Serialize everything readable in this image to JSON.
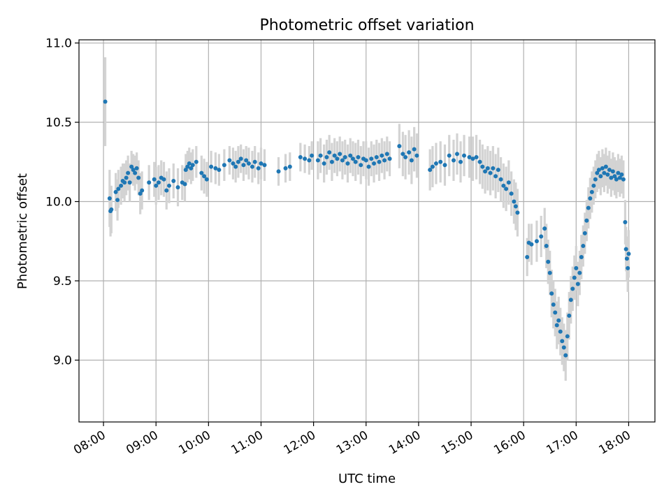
{
  "chart_data": {
    "type": "scatter",
    "title": "Photometric offset variation",
    "xlabel": "UTC time",
    "ylabel": "Photometric offset",
    "xlim": [
      "07:32",
      "18:30"
    ],
    "ylim": [
      8.61,
      11.02
    ],
    "x_ticks": [
      "08:00",
      "09:00",
      "10:00",
      "11:00",
      "12:00",
      "13:00",
      "14:00",
      "15:00",
      "16:00",
      "17:00",
      "18:00"
    ],
    "y_ticks": [
      9.0,
      9.5,
      10.0,
      10.5,
      11.0
    ],
    "grid": true,
    "colors": {
      "point": "#1f77b4",
      "errorbar": "#d3d3d3"
    },
    "series": [
      {
        "points": [
          {
            "t": "08:02",
            "y": 10.63,
            "e": 0.28
          },
          {
            "t": "08:07",
            "y": 10.02,
            "e": 0.18
          },
          {
            "t": "08:08",
            "y": 9.94,
            "e": 0.16
          },
          {
            "t": "08:09",
            "y": 9.95,
            "e": 0.15
          },
          {
            "t": "08:14",
            "y": 10.06,
            "e": 0.12
          },
          {
            "t": "08:16",
            "y": 10.01,
            "e": 0.13
          },
          {
            "t": "08:17",
            "y": 10.08,
            "e": 0.12
          },
          {
            "t": "08:20",
            "y": 10.1,
            "e": 0.12
          },
          {
            "t": "08:22",
            "y": 10.13,
            "e": 0.11
          },
          {
            "t": "08:24",
            "y": 10.12,
            "e": 0.12
          },
          {
            "t": "08:26",
            "y": 10.15,
            "e": 0.11
          },
          {
            "t": "08:28",
            "y": 10.18,
            "e": 0.11
          },
          {
            "t": "08:30",
            "y": 10.12,
            "e": 0.12
          },
          {
            "t": "08:32",
            "y": 10.22,
            "e": 0.1
          },
          {
            "t": "08:34",
            "y": 10.2,
            "e": 0.1
          },
          {
            "t": "08:36",
            "y": 10.18,
            "e": 0.11
          },
          {
            "t": "08:38",
            "y": 10.21,
            "e": 0.1
          },
          {
            "t": "08:40",
            "y": 10.15,
            "e": 0.11
          },
          {
            "t": "08:42",
            "y": 10.05,
            "e": 0.13
          },
          {
            "t": "08:44",
            "y": 10.07,
            "e": 0.12
          },
          {
            "t": "08:52",
            "y": 10.12,
            "e": 0.11
          },
          {
            "t": "08:58",
            "y": 10.14,
            "e": 0.11
          },
          {
            "t": "09:00",
            "y": 10.1,
            "e": 0.12
          },
          {
            "t": "09:03",
            "y": 10.12,
            "e": 0.11
          },
          {
            "t": "09:06",
            "y": 10.15,
            "e": 0.11
          },
          {
            "t": "09:09",
            "y": 10.14,
            "e": 0.11
          },
          {
            "t": "09:12",
            "y": 10.07,
            "e": 0.12
          },
          {
            "t": "09:15",
            "y": 10.1,
            "e": 0.11
          },
          {
            "t": "09:20",
            "y": 10.13,
            "e": 0.11
          },
          {
            "t": "09:25",
            "y": 10.09,
            "e": 0.12
          },
          {
            "t": "09:30",
            "y": 10.12,
            "e": 0.11
          },
          {
            "t": "09:33",
            "y": 10.11,
            "e": 0.11
          },
          {
            "t": "09:34",
            "y": 10.2,
            "e": 0.1
          },
          {
            "t": "09:36",
            "y": 10.22,
            "e": 0.1
          },
          {
            "t": "09:38",
            "y": 10.24,
            "e": 0.1
          },
          {
            "t": "09:40",
            "y": 10.21,
            "e": 0.1
          },
          {
            "t": "09:42",
            "y": 10.23,
            "e": 0.1
          },
          {
            "t": "09:46",
            "y": 10.25,
            "e": 0.1
          },
          {
            "t": "09:52",
            "y": 10.18,
            "e": 0.11
          },
          {
            "t": "09:55",
            "y": 10.16,
            "e": 0.11
          },
          {
            "t": "09:58",
            "y": 10.14,
            "e": 0.11
          },
          {
            "t": "10:03",
            "y": 10.22,
            "e": 0.1
          },
          {
            "t": "10:08",
            "y": 10.21,
            "e": 0.1
          },
          {
            "t": "10:12",
            "y": 10.2,
            "e": 0.1
          },
          {
            "t": "10:18",
            "y": 10.23,
            "e": 0.1
          },
          {
            "t": "10:24",
            "y": 10.26,
            "e": 0.09
          },
          {
            "t": "10:28",
            "y": 10.24,
            "e": 0.1
          },
          {
            "t": "10:31",
            "y": 10.22,
            "e": 0.1
          },
          {
            "t": "10:34",
            "y": 10.25,
            "e": 0.1
          },
          {
            "t": "10:37",
            "y": 10.27,
            "e": 0.09
          },
          {
            "t": "10:40",
            "y": 10.23,
            "e": 0.1
          },
          {
            "t": "10:43",
            "y": 10.26,
            "e": 0.09
          },
          {
            "t": "10:46",
            "y": 10.24,
            "e": 0.1
          },
          {
            "t": "10:50",
            "y": 10.22,
            "e": 0.1
          },
          {
            "t": "10:53",
            "y": 10.25,
            "e": 0.1
          },
          {
            "t": "10:57",
            "y": 10.21,
            "e": 0.1
          },
          {
            "t": "11:00",
            "y": 10.24,
            "e": 0.1
          },
          {
            "t": "11:04",
            "y": 10.23,
            "e": 0.1
          },
          {
            "t": "11:20",
            "y": 10.19,
            "e": 0.09
          },
          {
            "t": "11:28",
            "y": 10.21,
            "e": 0.09
          },
          {
            "t": "11:33",
            "y": 10.22,
            "e": 0.09
          },
          {
            "t": "11:45",
            "y": 10.28,
            "e": 0.09
          },
          {
            "t": "11:50",
            "y": 10.27,
            "e": 0.09
          },
          {
            "t": "11:55",
            "y": 10.26,
            "e": 0.09
          },
          {
            "t": "11:58",
            "y": 10.29,
            "e": 0.09
          },
          {
            "t": "12:05",
            "y": 10.26,
            "e": 0.12
          },
          {
            "t": "12:08",
            "y": 10.29,
            "e": 0.11
          },
          {
            "t": "12:12",
            "y": 10.24,
            "e": 0.12
          },
          {
            "t": "12:15",
            "y": 10.28,
            "e": 0.11
          },
          {
            "t": "12:18",
            "y": 10.31,
            "e": 0.11
          },
          {
            "t": "12:21",
            "y": 10.25,
            "e": 0.12
          },
          {
            "t": "12:24",
            "y": 10.29,
            "e": 0.11
          },
          {
            "t": "12:27",
            "y": 10.27,
            "e": 0.11
          },
          {
            "t": "12:30",
            "y": 10.3,
            "e": 0.11
          },
          {
            "t": "12:33",
            "y": 10.26,
            "e": 0.12
          },
          {
            "t": "12:36",
            "y": 10.28,
            "e": 0.11
          },
          {
            "t": "12:39",
            "y": 10.24,
            "e": 0.12
          },
          {
            "t": "12:42",
            "y": 10.29,
            "e": 0.11
          },
          {
            "t": "12:45",
            "y": 10.27,
            "e": 0.11
          },
          {
            "t": "12:48",
            "y": 10.25,
            "e": 0.12
          },
          {
            "t": "12:51",
            "y": 10.28,
            "e": 0.11
          },
          {
            "t": "12:54",
            "y": 10.23,
            "e": 0.12
          },
          {
            "t": "12:57",
            "y": 10.27,
            "e": 0.11
          },
          {
            "t": "13:00",
            "y": 10.26,
            "e": 0.12
          },
          {
            "t": "13:03",
            "y": 10.22,
            "e": 0.12
          },
          {
            "t": "13:06",
            "y": 10.27,
            "e": 0.11
          },
          {
            "t": "13:09",
            "y": 10.24,
            "e": 0.12
          },
          {
            "t": "13:12",
            "y": 10.28,
            "e": 0.11
          },
          {
            "t": "13:15",
            "y": 10.25,
            "e": 0.12
          },
          {
            "t": "13:18",
            "y": 10.29,
            "e": 0.11
          },
          {
            "t": "13:21",
            "y": 10.26,
            "e": 0.12
          },
          {
            "t": "13:24",
            "y": 10.3,
            "e": 0.11
          },
          {
            "t": "13:27",
            "y": 10.27,
            "e": 0.11
          },
          {
            "t": "13:38",
            "y": 10.35,
            "e": 0.14
          },
          {
            "t": "13:42",
            "y": 10.3,
            "e": 0.14
          },
          {
            "t": "13:45",
            "y": 10.28,
            "e": 0.14
          },
          {
            "t": "13:49",
            "y": 10.31,
            "e": 0.14
          },
          {
            "t": "13:52",
            "y": 10.26,
            "e": 0.15
          },
          {
            "t": "13:55",
            "y": 10.33,
            "e": 0.14
          },
          {
            "t": "13:58",
            "y": 10.29,
            "e": 0.14
          },
          {
            "t": "14:13",
            "y": 10.2,
            "e": 0.13
          },
          {
            "t": "14:16",
            "y": 10.22,
            "e": 0.13
          },
          {
            "t": "14:20",
            "y": 10.24,
            "e": 0.13
          },
          {
            "t": "14:25",
            "y": 10.25,
            "e": 0.13
          },
          {
            "t": "14:30",
            "y": 10.23,
            "e": 0.13
          },
          {
            "t": "14:35",
            "y": 10.29,
            "e": 0.13
          },
          {
            "t": "14:40",
            "y": 10.26,
            "e": 0.13
          },
          {
            "t": "14:44",
            "y": 10.3,
            "e": 0.13
          },
          {
            "t": "14:48",
            "y": 10.25,
            "e": 0.13
          },
          {
            "t": "14:52",
            "y": 10.29,
            "e": 0.13
          },
          {
            "t": "14:58",
            "y": 10.28,
            "e": 0.13
          },
          {
            "t": "15:02",
            "y": 10.27,
            "e": 0.14
          },
          {
            "t": "15:06",
            "y": 10.28,
            "e": 0.14
          },
          {
            "t": "15:10",
            "y": 10.25,
            "e": 0.14
          },
          {
            "t": "15:13",
            "y": 10.22,
            "e": 0.14
          },
          {
            "t": "15:16",
            "y": 10.19,
            "e": 0.14
          },
          {
            "t": "15:19",
            "y": 10.21,
            "e": 0.14
          },
          {
            "t": "15:22",
            "y": 10.18,
            "e": 0.14
          },
          {
            "t": "15:25",
            "y": 10.21,
            "e": 0.14
          },
          {
            "t": "15:28",
            "y": 10.16,
            "e": 0.14
          },
          {
            "t": "15:31",
            "y": 10.2,
            "e": 0.14
          },
          {
            "t": "15:34",
            "y": 10.14,
            "e": 0.14
          },
          {
            "t": "15:37",
            "y": 10.1,
            "e": 0.14
          },
          {
            "t": "15:40",
            "y": 10.08,
            "e": 0.14
          },
          {
            "t": "15:43",
            "y": 10.12,
            "e": 0.14
          },
          {
            "t": "15:46",
            "y": 10.05,
            "e": 0.14
          },
          {
            "t": "15:49",
            "y": 10.0,
            "e": 0.14
          },
          {
            "t": "15:51",
            "y": 9.97,
            "e": 0.15
          },
          {
            "t": "15:53",
            "y": 9.93,
            "e": 0.15
          },
          {
            "t": "16:04",
            "y": 9.65,
            "e": 0.12
          },
          {
            "t": "16:06",
            "y": 9.74,
            "e": 0.12
          },
          {
            "t": "16:09",
            "y": 9.73,
            "e": 0.13
          },
          {
            "t": "16:15",
            "y": 9.75,
            "e": 0.13
          },
          {
            "t": "16:20",
            "y": 9.78,
            "e": 0.13
          },
          {
            "t": "16:24",
            "y": 9.83,
            "e": 0.13
          },
          {
            "t": "16:26",
            "y": 9.72,
            "e": 0.14
          },
          {
            "t": "16:28",
            "y": 9.62,
            "e": 0.14
          },
          {
            "t": "16:30",
            "y": 9.55,
            "e": 0.14
          },
          {
            "t": "16:32",
            "y": 9.42,
            "e": 0.15
          },
          {
            "t": "16:34",
            "y": 9.35,
            "e": 0.15
          },
          {
            "t": "16:36",
            "y": 9.3,
            "e": 0.15
          },
          {
            "t": "16:38",
            "y": 9.22,
            "e": 0.15
          },
          {
            "t": "16:40",
            "y": 9.25,
            "e": 0.15
          },
          {
            "t": "16:42",
            "y": 9.18,
            "e": 0.15
          },
          {
            "t": "16:44",
            "y": 9.12,
            "e": 0.15
          },
          {
            "t": "16:46",
            "y": 9.08,
            "e": 0.15
          },
          {
            "t": "16:48",
            "y": 9.03,
            "e": 0.16
          },
          {
            "t": "16:50",
            "y": 9.15,
            "e": 0.15
          },
          {
            "t": "16:52",
            "y": 9.28,
            "e": 0.15
          },
          {
            "t": "16:54",
            "y": 9.38,
            "e": 0.15
          },
          {
            "t": "16:56",
            "y": 9.45,
            "e": 0.14
          },
          {
            "t": "16:58",
            "y": 9.52,
            "e": 0.14
          },
          {
            "t": "17:00",
            "y": 9.58,
            "e": 0.14
          },
          {
            "t": "17:02",
            "y": 9.48,
            "e": 0.14
          },
          {
            "t": "17:04",
            "y": 9.55,
            "e": 0.14
          },
          {
            "t": "17:06",
            "y": 9.65,
            "e": 0.14
          },
          {
            "t": "17:08",
            "y": 9.72,
            "e": 0.13
          },
          {
            "t": "17:10",
            "y": 9.8,
            "e": 0.13
          },
          {
            "t": "17:12",
            "y": 9.88,
            "e": 0.13
          },
          {
            "t": "17:14",
            "y": 9.96,
            "e": 0.13
          },
          {
            "t": "17:16",
            "y": 10.02,
            "e": 0.13
          },
          {
            "t": "17:18",
            "y": 10.06,
            "e": 0.13
          },
          {
            "t": "17:20",
            "y": 10.1,
            "e": 0.12
          },
          {
            "t": "17:22",
            "y": 10.14,
            "e": 0.12
          },
          {
            "t": "17:24",
            "y": 10.18,
            "e": 0.12
          },
          {
            "t": "17:26",
            "y": 10.2,
            "e": 0.12
          },
          {
            "t": "17:28",
            "y": 10.16,
            "e": 0.12
          },
          {
            "t": "17:30",
            "y": 10.21,
            "e": 0.12
          },
          {
            "t": "17:32",
            "y": 10.18,
            "e": 0.12
          },
          {
            "t": "17:34",
            "y": 10.22,
            "e": 0.12
          },
          {
            "t": "17:36",
            "y": 10.17,
            "e": 0.12
          },
          {
            "t": "17:38",
            "y": 10.2,
            "e": 0.12
          },
          {
            "t": "17:40",
            "y": 10.15,
            "e": 0.12
          },
          {
            "t": "17:42",
            "y": 10.19,
            "e": 0.12
          },
          {
            "t": "17:44",
            "y": 10.16,
            "e": 0.12
          },
          {
            "t": "17:46",
            "y": 10.14,
            "e": 0.12
          },
          {
            "t": "17:48",
            "y": 10.18,
            "e": 0.12
          },
          {
            "t": "17:50",
            "y": 10.15,
            "e": 0.12
          },
          {
            "t": "17:52",
            "y": 10.17,
            "e": 0.12
          },
          {
            "t": "17:54",
            "y": 10.14,
            "e": 0.12
          },
          {
            "t": "17:56",
            "y": 9.87,
            "e": 0.14
          },
          {
            "t": "17:57",
            "y": 9.7,
            "e": 0.14
          },
          {
            "t": "17:58",
            "y": 9.64,
            "e": 0.14
          },
          {
            "t": "17:59",
            "y": 9.58,
            "e": 0.15
          },
          {
            "t": "18:00",
            "y": 9.67,
            "e": 0.15
          }
        ]
      }
    ]
  }
}
